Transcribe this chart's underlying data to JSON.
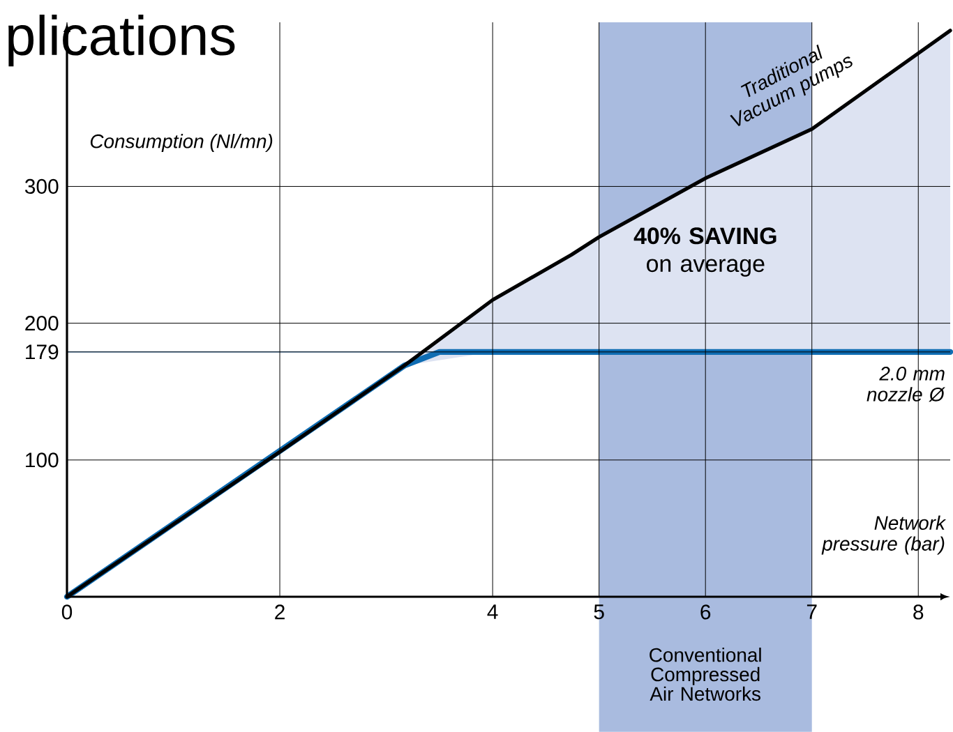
{
  "chart_data": {
    "type": "line",
    "title": "plications",
    "xlabel": "Network pressure (bar)",
    "ylabel": "Consumption (Nl/mn)",
    "xlim": [
      0,
      8.3
    ],
    "ylim": [
      0,
      420
    ],
    "xticks": [
      0,
      2,
      4,
      5,
      6,
      7,
      8
    ],
    "yticks": [
      100,
      179,
      200,
      300
    ],
    "grid": true,
    "marker": "none",
    "series": [
      {
        "color": "#0f6db3",
        "x": [
          0,
          3.17,
          3.5,
          8.3
        ],
        "values": [
          0,
          169,
          179,
          179
        ]
      },
      {
        "name": "Traditional Vacuum pumps",
        "color": "#000000",
        "x": [
          0,
          2,
          3.17,
          4,
          4.74,
          5,
          6,
          7,
          8.3
        ],
        "values": [
          0,
          106,
          169,
          217,
          250,
          263,
          306,
          342,
          414
        ],
        "lower": [
          0,
          106,
          169,
          179,
          179,
          179,
          179,
          179,
          179
        ],
        "upper": [
          0,
          106,
          169,
          217,
          250,
          263,
          306,
          342,
          414
        ]
      }
    ],
    "ref_lines": [
      {
        "axis": "y",
        "value": 179,
        "color": "#5b9bd5"
      }
    ],
    "bands": [
      {
        "axis": "x",
        "from": 5,
        "to": 7,
        "label": "Conventional Compressed Air Networks",
        "color": "#a9bbdf"
      }
    ],
    "annotations": [
      "**40% SAVING** on average",
      "*2.0 mm nozzle Ø*"
    ]
  }
}
